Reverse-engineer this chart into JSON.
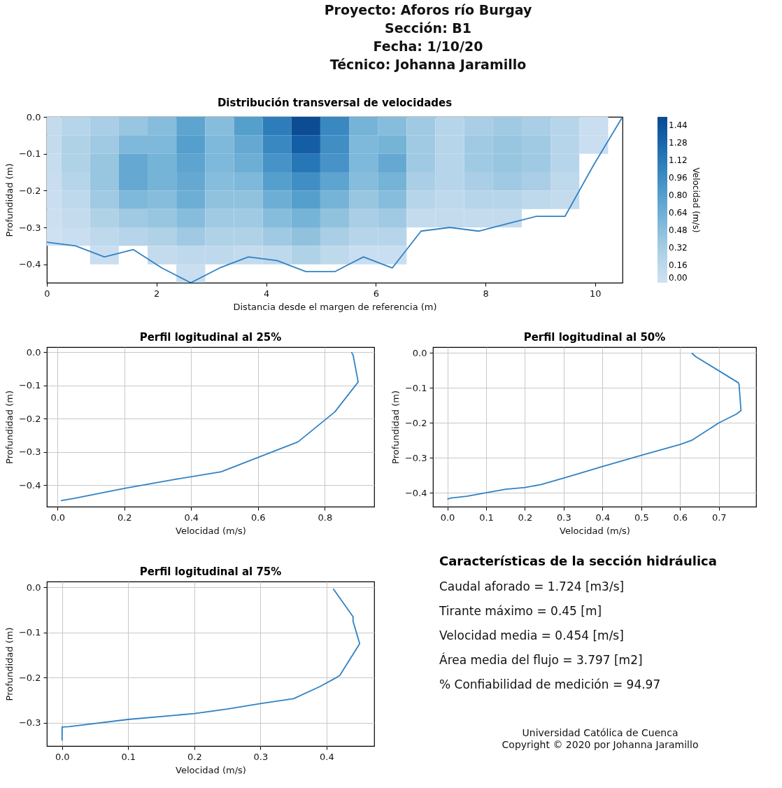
{
  "chart_data": [
    {
      "type": "other",
      "annotations": [
        "Proyecto: Aforos río Burgay",
        "Sección: B1",
        "Fecha: 1/10/20",
        "Técnico: Johanna Jaramillo"
      ]
    },
    {
      "type": "heatmap",
      "title": "Distribución transversal de velocidades",
      "xlabel": "Distancia desde el margen de referencia (m)",
      "ylabel": "Profundidad (m)",
      "clabel": "Velocidad (m/s)",
      "x": [
        0,
        0.525,
        1.05,
        1.575,
        2.1,
        2.625,
        3.15,
        3.675,
        4.2,
        4.725,
        5.25,
        5.775,
        6.3,
        6.825,
        7.35,
        7.875,
        8.4,
        8.925,
        9.45,
        9.975,
        10.5
      ],
      "y": [
        -0.025,
        -0.075,
        -0.125,
        -0.175,
        -0.225,
        -0.275,
        -0.325,
        -0.375,
        -0.425
      ],
      "cells": [
        [
          0.1,
          0.2,
          0.3,
          0.4,
          0.5,
          0.75,
          0.5,
          0.8,
          1.1,
          1.5,
          1.0,
          0.6,
          0.5,
          0.35,
          0.2,
          0.3,
          0.35,
          0.3,
          0.2,
          0.05,
          null
        ],
        [
          0.1,
          0.25,
          0.35,
          0.55,
          0.55,
          0.8,
          0.55,
          0.7,
          1.0,
          1.35,
          0.95,
          0.55,
          0.6,
          0.35,
          0.2,
          0.35,
          0.4,
          0.35,
          0.2,
          0.05,
          null
        ],
        [
          0.08,
          0.25,
          0.4,
          0.7,
          0.6,
          0.75,
          0.55,
          0.65,
          0.9,
          1.15,
          0.9,
          0.55,
          0.7,
          0.35,
          0.2,
          0.35,
          0.4,
          0.35,
          0.2,
          null,
          null
        ],
        [
          0.06,
          0.2,
          0.4,
          0.7,
          0.6,
          0.7,
          0.5,
          0.55,
          0.8,
          0.95,
          0.75,
          0.5,
          0.6,
          0.3,
          0.2,
          0.3,
          0.35,
          0.3,
          0.15,
          null,
          null
        ],
        [
          0.05,
          0.15,
          0.35,
          0.55,
          0.5,
          0.65,
          0.45,
          0.45,
          0.65,
          0.8,
          0.6,
          0.4,
          0.5,
          0.2,
          0.15,
          0.2,
          0.2,
          0.15,
          0.1,
          null,
          null
        ],
        [
          0.03,
          0.1,
          0.25,
          0.35,
          0.4,
          0.5,
          0.35,
          0.35,
          0.5,
          0.6,
          0.45,
          0.3,
          0.35,
          0.1,
          0.1,
          0.1,
          0.1,
          null,
          null,
          null,
          null
        ],
        [
          0.01,
          0.05,
          0.15,
          0.2,
          0.25,
          0.35,
          0.25,
          0.25,
          0.35,
          0.45,
          0.3,
          0.2,
          0.2,
          null,
          null,
          null,
          null,
          null,
          null,
          null,
          null
        ],
        [
          null,
          null,
          0.05,
          null,
          0.1,
          0.15,
          0.15,
          0.1,
          0.15,
          0.25,
          0.15,
          0.05,
          0.05,
          null,
          null,
          null,
          null,
          null,
          null,
          null,
          null
        ],
        [
          null,
          null,
          null,
          null,
          null,
          0.05,
          null,
          null,
          null,
          null,
          null,
          null,
          null,
          null,
          null,
          null,
          null,
          null,
          null,
          null,
          null
        ]
      ],
      "clim": [
        0,
        1.52
      ],
      "cticks": [
        {
          "value": 0,
          "label": "0.00"
        },
        {
          "value": 0.16,
          "label": "0.16"
        },
        {
          "value": 0.32,
          "label": "0.32"
        },
        {
          "value": 0.48,
          "label": "0.48"
        },
        {
          "value": 0.64,
          "label": "0.64"
        },
        {
          "value": 0.8,
          "label": "0.80"
        },
        {
          "value": 0.96,
          "label": "0.96"
        },
        {
          "value": 1.12,
          "label": "1.12"
        },
        {
          "value": 1.28,
          "label": "1.28"
        },
        {
          "value": 1.44,
          "label": "1.44"
        }
      ],
      "series": [
        {
          "type": "line",
          "color": "#3182c4",
          "x": [
            0,
            0.525,
            1.05,
            1.575,
            2.1,
            2.625,
            3.15,
            3.675,
            4.2,
            4.725,
            5.25,
            5.775,
            6.3,
            6.825,
            7.35,
            7.875,
            8.4,
            8.925,
            9.45,
            9.975,
            10.5
          ],
          "values": [
            -0.34,
            -0.35,
            -0.38,
            -0.36,
            -0.41,
            -0.45,
            -0.41,
            -0.38,
            -0.39,
            -0.42,
            -0.42,
            -0.38,
            -0.41,
            -0.31,
            -0.3,
            -0.31,
            -0.29,
            -0.27,
            -0.27,
            -0.13,
            0
          ]
        }
      ],
      "xlim": [
        0,
        10.5
      ],
      "ylim": [
        -0.45,
        0
      ],
      "xticks": [
        0,
        2,
        4,
        6,
        8,
        10
      ],
      "yticks": [
        {
          "value": 0,
          "label": "0.0"
        },
        {
          "value": -0.1,
          "label": "−0.1"
        },
        {
          "value": -0.2,
          "label": "−0.2"
        },
        {
          "value": -0.3,
          "label": "−0.3"
        },
        {
          "value": -0.4,
          "label": "−0.4"
        }
      ]
    },
    {
      "type": "line",
      "title": "Perfil logitudinal al 25%",
      "xlabel": "Velocidad (m/s)",
      "ylabel": "Profundidad (m)",
      "grid": true,
      "series": [
        {
          "color": "#3182c4",
          "x": [
            0.88,
            0.885,
            0.9,
            0.83,
            0.72,
            0.49,
            0.35,
            0.2,
            0.1,
            0.05,
            0.01
          ],
          "values": [
            0,
            -0.01,
            -0.09,
            -0.18,
            -0.27,
            -0.36,
            -0.383,
            -0.41,
            -0.43,
            -0.44,
            -0.447
          ]
        }
      ],
      "xlim": [
        -0.032,
        0.948
      ],
      "ylim": [
        -0.465,
        0.015
      ],
      "xticks": [
        {
          "value": 0,
          "label": "0.0"
        },
        {
          "value": 0.2,
          "label": "0.2"
        },
        {
          "value": 0.4,
          "label": "0.4"
        },
        {
          "value": 0.6,
          "label": "0.6"
        },
        {
          "value": 0.8,
          "label": "0.8"
        }
      ],
      "yticks": [
        {
          "value": 0,
          "label": "0.0"
        },
        {
          "value": -0.1,
          "label": "−0.1"
        },
        {
          "value": -0.2,
          "label": "−0.2"
        },
        {
          "value": -0.3,
          "label": "−0.3"
        },
        {
          "value": -0.4,
          "label": "−0.4"
        }
      ]
    },
    {
      "type": "line",
      "title": "Perfil logitudinal al 50%",
      "xlabel": "Velocidad (m/s)",
      "ylabel": "Profundidad (m)",
      "grid": true,
      "series": [
        {
          "color": "#3182c4",
          "x": [
            0.63,
            0.64,
            0.75,
            0.752,
            0.757,
            0.745,
            0.7,
            0.63,
            0.6,
            0.5,
            0.4,
            0.3,
            0.24,
            0.2,
            0.15,
            0.1,
            0.05,
            0.01,
            0
          ],
          "values": [
            0,
            -0.01,
            -0.085,
            -0.09,
            -0.165,
            -0.175,
            -0.2,
            -0.25,
            -0.262,
            -0.293,
            -0.325,
            -0.358,
            -0.377,
            -0.385,
            -0.39,
            -0.4,
            -0.41,
            -0.415,
            -0.418
          ]
        }
      ],
      "xlim": [
        -0.037,
        0.796
      ],
      "ylim": [
        -0.44,
        0.017
      ],
      "xticks": [
        {
          "value": 0,
          "label": "0.0"
        },
        {
          "value": 0.1,
          "label": "0.1"
        },
        {
          "value": 0.2,
          "label": "0.2"
        },
        {
          "value": 0.3,
          "label": "0.3"
        },
        {
          "value": 0.4,
          "label": "0.4"
        },
        {
          "value": 0.5,
          "label": "0.5"
        },
        {
          "value": 0.6,
          "label": "0.6"
        },
        {
          "value": 0.7,
          "label": "0.7"
        }
      ],
      "yticks": [
        {
          "value": 0,
          "label": "0.0"
        },
        {
          "value": -0.1,
          "label": "−0.1"
        },
        {
          "value": -0.2,
          "label": "−0.2"
        },
        {
          "value": -0.3,
          "label": "−0.3"
        },
        {
          "value": -0.4,
          "label": "−0.4"
        }
      ]
    },
    {
      "type": "line",
      "title": "Perfil logitudinal al 75%",
      "xlabel": "Velocidad (m/s)",
      "ylabel": "Profundidad (m)",
      "grid": true,
      "series": [
        {
          "color": "#3182c4",
          "x": [
            0.41,
            0.44,
            0.44,
            0.45,
            0.42,
            0.415,
            0.39,
            0.35,
            0.3,
            0.25,
            0.2,
            0.1,
            0.01,
            0,
            0
          ],
          "values": [
            -0.003,
            -0.065,
            -0.075,
            -0.125,
            -0.195,
            -0.2,
            -0.22,
            -0.247,
            -0.258,
            -0.27,
            -0.28,
            -0.293,
            -0.309,
            -0.31,
            -0.34
          ]
        }
      ],
      "xlim": [
        -0.023,
        0.472
      ],
      "ylim": [
        -0.352,
        0.013
      ],
      "xticks": [
        {
          "value": 0,
          "label": "0.0"
        },
        {
          "value": 0.1,
          "label": "0.1"
        },
        {
          "value": 0.2,
          "label": "0.2"
        },
        {
          "value": 0.3,
          "label": "0.3"
        },
        {
          "value": 0.4,
          "label": "0.4"
        }
      ],
      "yticks": [
        {
          "value": 0,
          "label": "0.0"
        },
        {
          "value": -0.1,
          "label": "−0.1"
        },
        {
          "value": -0.2,
          "label": "−0.2"
        },
        {
          "value": -0.3,
          "label": "−0.3"
        }
      ]
    },
    {
      "type": "other",
      "title": "Características de la sección hidráulica",
      "annotations": [
        "Caudal aforado = 1.724 [m3/s]",
        "Tirante máximo = 0.45 [m]",
        "Velocidad media = 0.454 [m/s]",
        "Área media del flujo = 3.797 [m2]",
        "% Confiabilidad de medición = 94.97"
      ]
    },
    {
      "type": "other",
      "annotations": [
        "Universidad Católica de Cuenca",
        "Copyright © 2020 por Johanna Jaramillo"
      ]
    }
  ]
}
